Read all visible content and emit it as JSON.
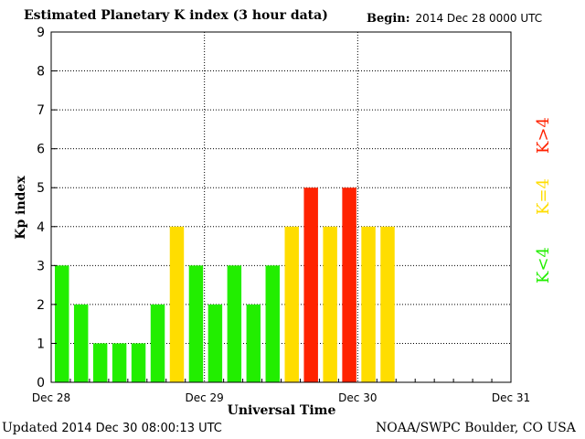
{
  "header": {
    "title": "Estimated Planetary K index (3 hour data)",
    "begin_label": "Begin:",
    "begin_value": "2014 Dec 28 0000 UTC"
  },
  "footer": {
    "updated_label": "Updated",
    "updated_value": "2014 Dec 30 08:00:13 UTC",
    "credit": "NOAA/SWPC Boulder, CO USA"
  },
  "colors": {
    "low": "#22ee00",
    "moderate": "#ffdd00",
    "high": "#ff2200"
  },
  "legend": [
    {
      "label": "K<4",
      "color": "#22ee00"
    },
    {
      "label": "K=4",
      "color": "#ffdd00"
    },
    {
      "label": "K>4",
      "color": "#ff2200"
    }
  ],
  "chart_data": {
    "type": "bar",
    "title": "Estimated Planetary K index (3 hour data)",
    "xlabel": "Universal Time",
    "ylabel": "Kp index",
    "ylim": [
      0,
      9
    ],
    "yticks": [
      "0",
      "1",
      "2",
      "3",
      "4",
      "5",
      "6",
      "7",
      "8",
      "9"
    ],
    "xticks": [
      "Dec 28",
      "Dec 29",
      "Dec 30",
      "Dec 31"
    ],
    "interval_hours": 3,
    "grid": true,
    "legend_position": "right",
    "values": [
      3,
      2,
      1,
      1,
      1,
      2,
      4,
      3,
      2,
      3,
      2,
      3,
      4,
      5,
      4,
      5,
      4,
      4
    ]
  }
}
